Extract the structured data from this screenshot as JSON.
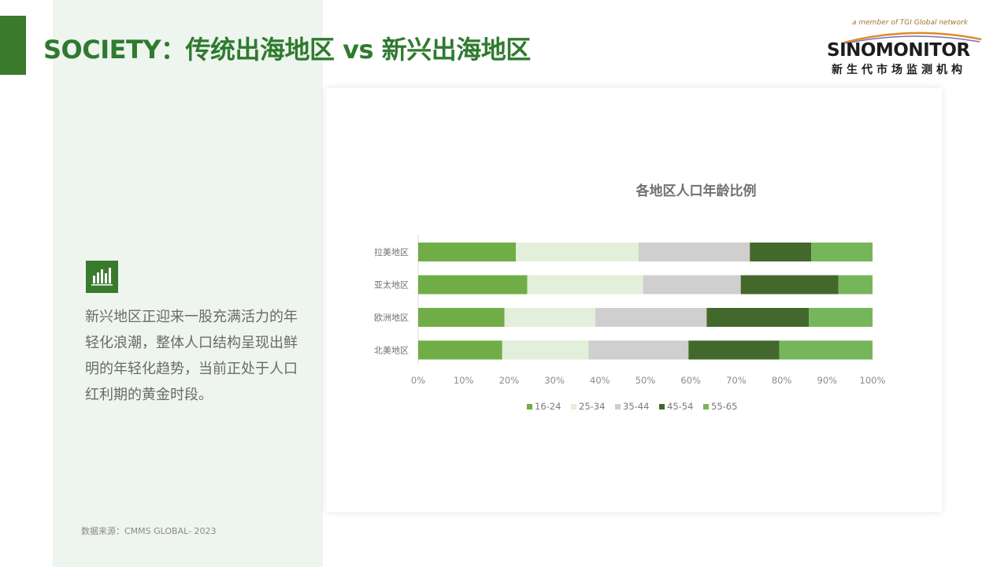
{
  "page": {
    "title": "SOCIETY：传统出海地区 vs 新兴出海地区",
    "note": "新兴地区正迎来一股充满活力的年轻化浪潮，整体人口结构呈现出鲜明的年轻化趋势，当前正处于人口红利期的黄金时段。",
    "source": "数据来源：CMMS GLOBAL- 2023",
    "note_icon": "bar-chart-icon"
  },
  "logo": {
    "network_text": "a member of TGI Global network",
    "name": "SINOMONITOR",
    "cn_name": "新生代市场监测机构"
  },
  "colors": {
    "brand_green": "#3a7a2c",
    "title_green": "#2f7a2f",
    "panel_bg": "#eef5ee"
  },
  "chart_data": {
    "type": "bar",
    "orientation": "horizontal",
    "stacked": "percent",
    "title": "各地区人口年龄比例",
    "categories": [
      "拉美地区",
      "亚太地区",
      "欧洲地区",
      "北美地区"
    ],
    "series": [
      {
        "name": "16-24",
        "color": "#70ad47",
        "values": [
          21.5,
          24,
          19,
          18.5
        ]
      },
      {
        "name": "25-34",
        "color": "#e2efda",
        "values": [
          27,
          25.5,
          20,
          19
        ]
      },
      {
        "name": "35-44",
        "color": "#d0cece",
        "values": [
          24.5,
          21.5,
          24.5,
          22
        ]
      },
      {
        "name": "45-54",
        "color": "#43682b",
        "values": [
          13.5,
          21.5,
          22.5,
          20
        ]
      },
      {
        "name": "55-65",
        "color": "#76b65a",
        "values": [
          13.5,
          7.5,
          14,
          20.5
        ]
      }
    ],
    "xlim": [
      0,
      100
    ],
    "xticks": [
      "0%",
      "10%",
      "20%",
      "30%",
      "40%",
      "50%",
      "60%",
      "70%",
      "80%",
      "90%",
      "100%"
    ],
    "legend_position": "bottom",
    "grid": false
  }
}
